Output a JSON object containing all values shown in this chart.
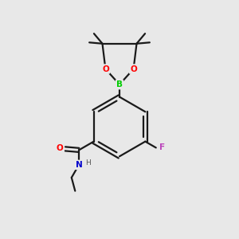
{
  "bg_color": "#e8e8e8",
  "bond_color": "#1a1a1a",
  "atom_colors": {
    "O": "#ff0000",
    "B": "#00cc00",
    "F": "#bb44bb",
    "N": "#0000cc",
    "H": "#666666"
  },
  "lw": 1.6
}
